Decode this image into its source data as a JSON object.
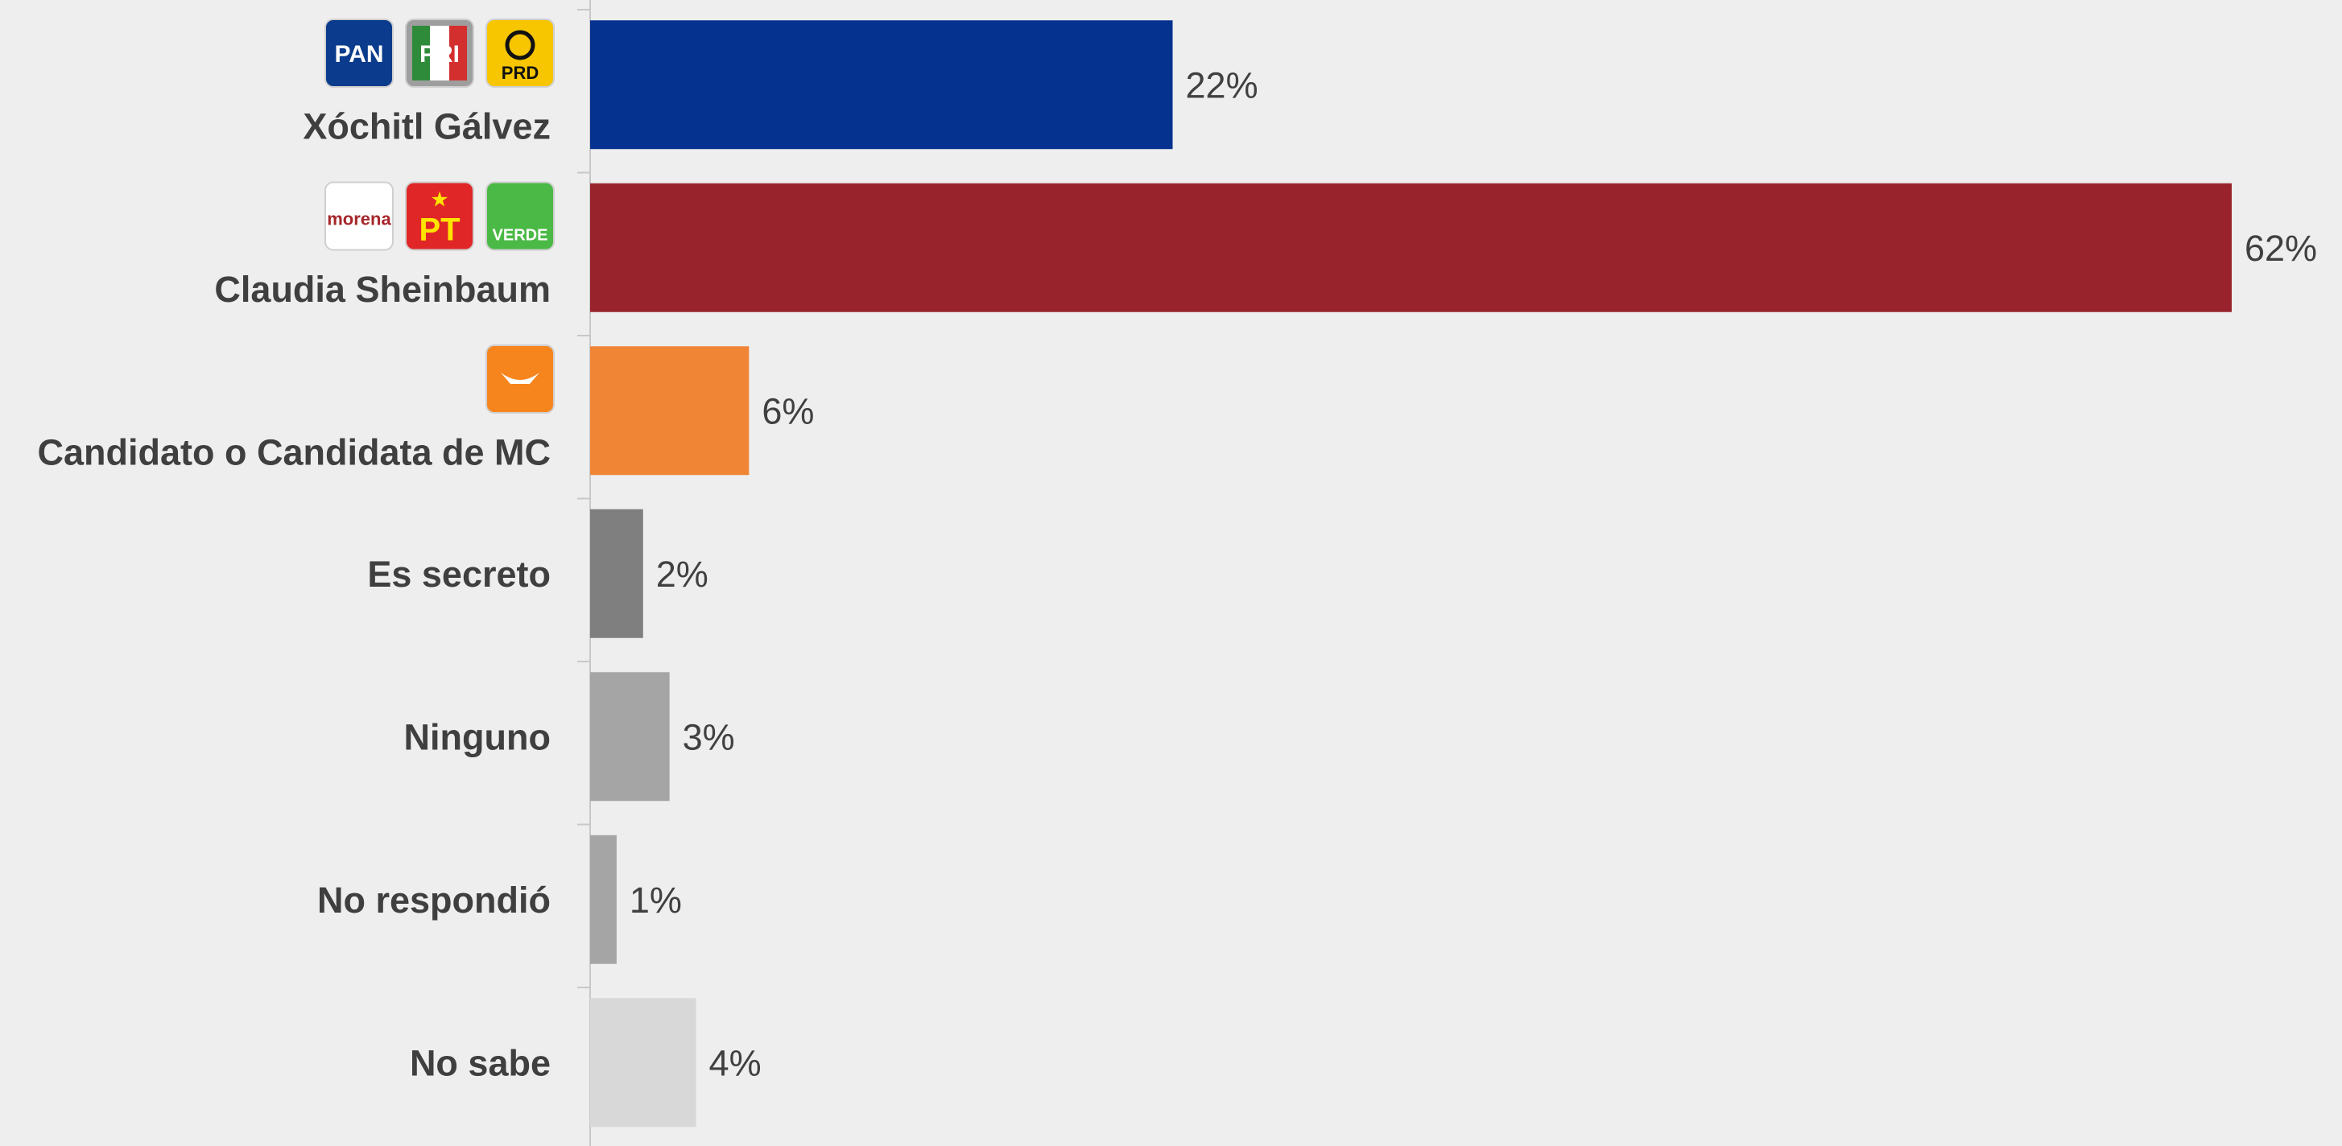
{
  "chart_data": {
    "type": "bar",
    "orientation": "horizontal",
    "categories": [
      "Xóchitl Gálvez",
      "Claudia Sheinbaum",
      "Candidato o Candidata de MC",
      "Es secreto",
      "Ninguno",
      "No respondió",
      "No sabe"
    ],
    "values": [
      22,
      62,
      6,
      2,
      3,
      1,
      4
    ],
    "value_labels": [
      "22%",
      "62%",
      "6%",
      "2%",
      "3%",
      "1%",
      "4%"
    ],
    "bar_colors": [
      "#06328f",
      "#98232d",
      "#f08536",
      "#7f7f7f",
      "#a5a5a5",
      "#a5a5a5",
      "#d8d8d8"
    ],
    "xlim": [
      0,
      62
    ],
    "grid": false,
    "logos": [
      [
        {
          "icon": "pan-logo",
          "text": "PAN",
          "bg": "#0a3b8c",
          "fg": "#ffffff"
        },
        {
          "icon": "pri-logo",
          "text": "PRI",
          "bg": "#9e9e9e",
          "fg": "#ffffff"
        },
        {
          "icon": "prd-logo",
          "text": "PRD",
          "bg": "#f7c600",
          "fg": "#111111"
        }
      ],
      [
        {
          "icon": "morena-logo",
          "text": "morena",
          "bg": "#ffffff",
          "fg": "#a6262b"
        },
        {
          "icon": "pt-logo",
          "text": "PT",
          "bg": "#e02626",
          "fg": "#ffe400"
        },
        {
          "icon": "verde-logo",
          "text": "VERDE",
          "bg": "#4bb945",
          "fg": "#ffffff"
        }
      ],
      [
        {
          "icon": "movimiento-ciudadano-logo",
          "text": "",
          "bg": "#f7851e",
          "fg": "#ffffff"
        }
      ],
      [],
      [],
      [],
      []
    ]
  }
}
